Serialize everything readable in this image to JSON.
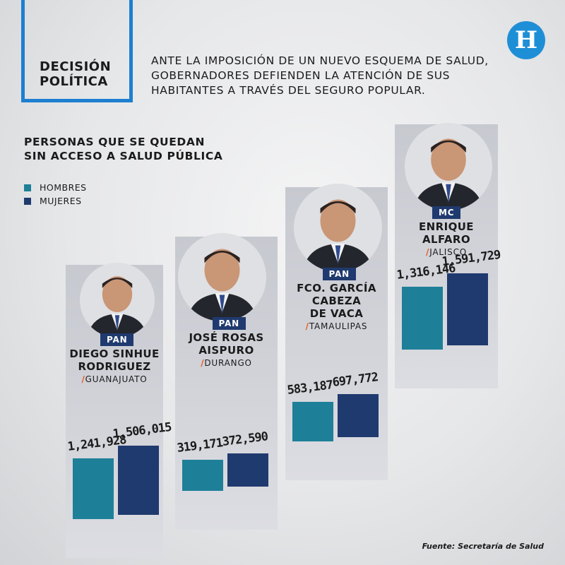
{
  "header": {
    "section_label_line1": "DECISIÓN",
    "section_label_line2": "POLÍTICA",
    "intro_line1": "ANTE LA IMPOSICIÓN DE UN NUEVO ESQUEMA DE SALUD,",
    "intro_line2": "GOBERNADORES DEFIENDEN LA ATENCIÓN DE SUS",
    "intro_line3": "HABITANTES A TRAVÉS DEL SEGURO POPULAR.",
    "logo_letter": "H"
  },
  "colors": {
    "hombres": "#1e7f98",
    "mujeres": "#1f3a6e",
    "accent": "#1d7fd0",
    "slash": "#e8541d"
  },
  "source": "Fuente: Secretaría de Salud",
  "chart_data": {
    "type": "bar",
    "title_line1": "PERSONAS QUE SE QUEDAN",
    "title_line2": "SIN ACCESO A SALUD PÚBLICA",
    "legend": [
      "HOMBRES",
      "MUJERES"
    ],
    "categories": [
      "Guanajuato",
      "Durango",
      "Tamaulipas",
      "Jalisco"
    ],
    "series": [
      {
        "name": "HOMBRES",
        "values": [
          1241928,
          319171,
          583187,
          1316146
        ]
      },
      {
        "name": "MUJERES",
        "values": [
          1506015,
          372590,
          697772,
          1591729
        ]
      }
    ],
    "labels": {
      "hombres": [
        "1,241,928",
        "319,171",
        "583,187",
        "1,316,146"
      ],
      "mujeres": [
        "1,506,015",
        "372,590",
        "697,772",
        "1,591,729"
      ]
    },
    "governors": [
      {
        "party": "PAN",
        "name_line1": "DIEGO SINHUE",
        "name_line2": "RODRIGUEZ",
        "name_line3": "",
        "state": "GUANAJUATO"
      },
      {
        "party": "PAN",
        "name_line1": "JOSÉ ROSAS",
        "name_line2": "AISPURO",
        "name_line3": "",
        "state": "DURANGO"
      },
      {
        "party": "PAN",
        "name_line1": "FCO. GARCÍA",
        "name_line2": "CABEZA",
        "name_line3": "DE VACA",
        "state": "TAMAULIPAS"
      },
      {
        "party": "MC",
        "name_line1": "ENRIQUE",
        "name_line2": "ALFARO",
        "name_line3": "",
        "state": "JALISCO"
      }
    ]
  }
}
